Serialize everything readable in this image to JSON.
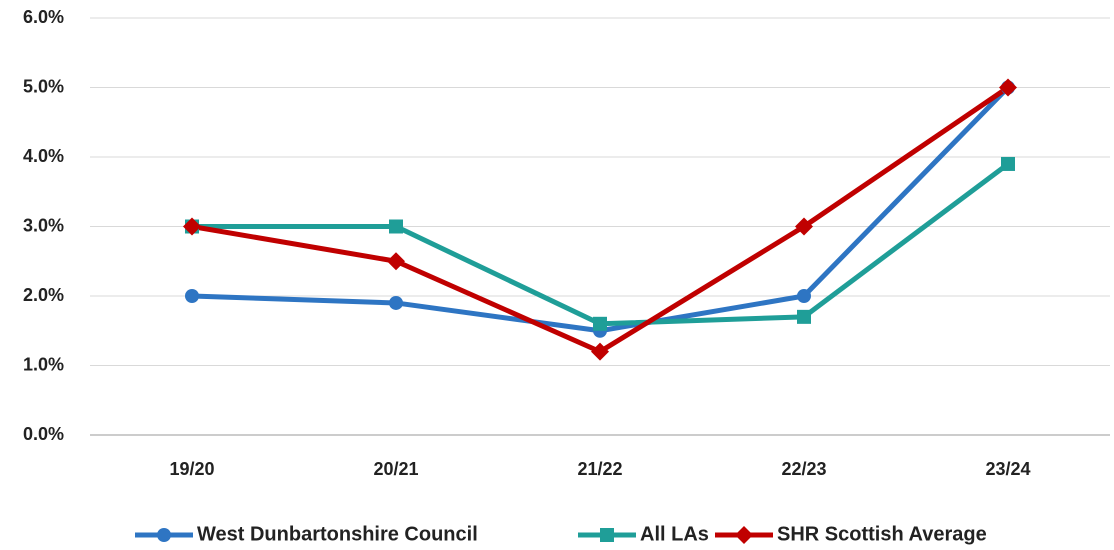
{
  "chart_data": {
    "type": "line",
    "categories": [
      "19/20",
      "20/21",
      "21/22",
      "22/23",
      "23/24"
    ],
    "series": [
      {
        "name": "West Dunbartonshire Council",
        "color": "#2e75c3",
        "marker": "circle",
        "values": [
          2.0,
          1.9,
          1.5,
          2.0,
          5.0
        ]
      },
      {
        "name": "All LAs",
        "color": "#1f9e98",
        "marker": "square",
        "values": [
          3.0,
          3.0,
          1.6,
          1.7,
          3.9
        ]
      },
      {
        "name": "SHR Scottish Average",
        "color": "#c00000",
        "marker": "diamond",
        "values": [
          3.0,
          2.5,
          1.2,
          3.0,
          5.0
        ]
      }
    ],
    "ylim": [
      0,
      6
    ],
    "yticks": [
      {
        "value": 0,
        "label": "0.0%"
      },
      {
        "value": 1,
        "label": "1.0%"
      },
      {
        "value": 2,
        "label": "2.0%"
      },
      {
        "value": 3,
        "label": "3.0%"
      },
      {
        "value": 4,
        "label": "4.0%"
      },
      {
        "value": 5,
        "label": "5.0%"
      },
      {
        "value": 6,
        "label": "6.0%"
      }
    ],
    "grid": true,
    "legend": "bottom"
  }
}
